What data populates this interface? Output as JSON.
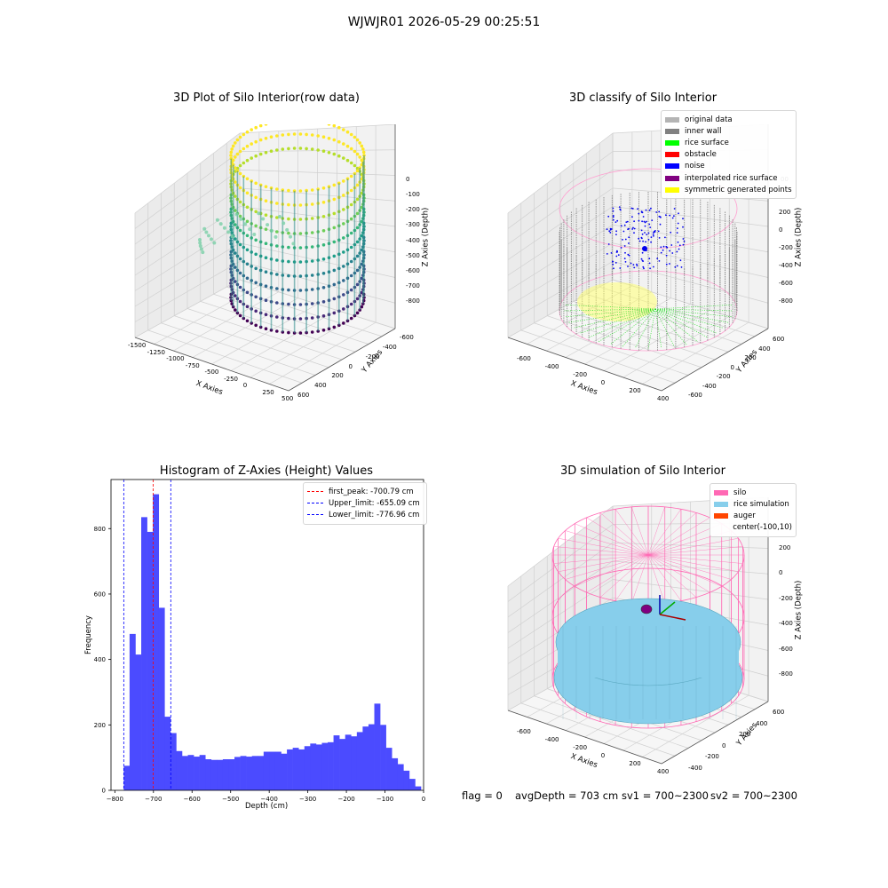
{
  "suptitle": "WJWJR01 2026-05-29 00:25:51",
  "status": {
    "flag": "flag = 0",
    "avg_depth": "avgDepth = 703 cm",
    "sv1": "sv1 = 700~2300",
    "sv2": "sv2 = 700~2300"
  },
  "colors": {
    "hist_bar": "#4b4bff",
    "peak_line": "#ff0000",
    "limit_line": "#0000ff",
    "silo_wire": "#ff69b4",
    "rice_sim": "#87ceeb"
  },
  "chart_data": [
    {
      "type": "scatter3d",
      "title": "3D Plot of Silo Interior(row data)",
      "xlabel": "X Axies",
      "ylabel": "Y Axies",
      "zlabel": "Z Axies (Depth)",
      "x_ticks": [
        "-1500",
        "-1250",
        "-1000",
        "-750",
        "-500",
        "-250",
        "0",
        "250",
        "500"
      ],
      "y_ticks": [
        "-600",
        "-400",
        "-200",
        "0",
        "200",
        "400",
        "600"
      ],
      "z_ticks": [
        "0",
        "-100",
        "-200",
        "-300",
        "-400",
        "-500",
        "-600",
        "-700",
        "-800"
      ],
      "colormap": "viridis"
    },
    {
      "type": "scatter3d",
      "title": "3D classify of Silo Interior",
      "xlabel": "X Axies",
      "ylabel": "Y Axies",
      "zlabel": "Z Axies (Depth)",
      "x_ticks": [
        "-600",
        "-400",
        "-200",
        "0",
        "200",
        "400"
      ],
      "y_ticks": [
        "-600",
        "-400",
        "-200",
        "0",
        "200",
        "400",
        "600"
      ],
      "z_ticks": [
        "200",
        "0",
        "-200",
        "-400",
        "-600",
        "-800"
      ],
      "z_partial_tick": "00",
      "legend": [
        {
          "label": "original data",
          "color": "#b4b4b4"
        },
        {
          "label": "inner wall",
          "color": "#808080"
        },
        {
          "label": "rice surface",
          "color": "#00ff00"
        },
        {
          "label": "obstacle",
          "color": "#ff0000"
        },
        {
          "label": "noise",
          "color": "#0000ff"
        },
        {
          "label": "interpolated rice surface",
          "color": "#800080"
        },
        {
          "label": "symmetric generated points",
          "color": "#ffff00"
        }
      ]
    },
    {
      "type": "bar",
      "title": "Histogram of Z-Axies (Height) Values",
      "xlabel": "Depth (cm)",
      "ylabel": "Frequency",
      "xlim": [
        -810,
        0
      ],
      "ylim": [
        0,
        950
      ],
      "x_ticks": [
        -800,
        -700,
        -600,
        -500,
        -400,
        -300,
        -200,
        -100,
        0
      ],
      "y_ticks": [
        0,
        200,
        400,
        600,
        800
      ],
      "bin_start": -776.96,
      "bin_width": 15.1,
      "values": [
        75,
        478,
        415,
        835,
        790,
        905,
        558,
        225,
        175,
        120,
        105,
        108,
        103,
        108,
        95,
        93,
        93,
        95,
        95,
        102,
        105,
        103,
        105,
        105,
        118,
        118,
        118,
        112,
        125,
        130,
        125,
        135,
        143,
        140,
        145,
        147,
        168,
        157,
        170,
        165,
        178,
        195,
        202,
        265,
        200,
        130,
        98,
        80,
        60,
        35,
        12
      ],
      "vlines": [
        {
          "label": "first_peak: -700.79 cm",
          "x": -700.79,
          "color": "#ff0000"
        },
        {
          "label": "Upper_limit: -655.09 cm",
          "x": -655.09,
          "color": "#0000ff"
        },
        {
          "label": "Lower_limit: -776.96 cm",
          "x": -776.96,
          "color": "#0000ff"
        }
      ]
    },
    {
      "type": "surface3d",
      "title": "3D simulation of Silo Interior",
      "xlabel": "X Axies",
      "ylabel": "Y Axies",
      "zlabel": "Z Axies (Depth)",
      "x_ticks": [
        "-600",
        "-400",
        "-200",
        "0",
        "200",
        "400"
      ],
      "y_ticks": [
        "-400",
        "-200",
        "0",
        "200",
        "400",
        "600"
      ],
      "z_ticks": [
        "200",
        "0",
        "-200",
        "-400",
        "-600",
        "-800"
      ],
      "legend": [
        {
          "label": "silo",
          "color": "#ff69b4"
        },
        {
          "label": "rice simulation",
          "color": "#87ceeb"
        },
        {
          "label": "auger",
          "color": "#ff4500"
        },
        {
          "label": "center(-100,10)",
          "color": ""
        }
      ]
    }
  ]
}
